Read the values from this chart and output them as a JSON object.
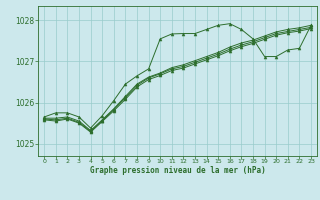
{
  "title": "Graphe pression niveau de la mer (hPa)",
  "bg_color": "#cce8ec",
  "grid_color": "#99cccc",
  "line_color": "#2d6e2d",
  "marker_color": "#2d6e2d",
  "xlim": [
    -0.5,
    23.5
  ],
  "ylim": [
    1024.7,
    1028.35
  ],
  "yticks": [
    1025,
    1026,
    1027,
    1028
  ],
  "xticks": [
    0,
    1,
    2,
    3,
    4,
    5,
    6,
    7,
    8,
    9,
    10,
    11,
    12,
    13,
    14,
    15,
    16,
    17,
    18,
    19,
    20,
    21,
    22,
    23
  ],
  "y_main": [
    1025.65,
    1025.75,
    1025.75,
    1025.65,
    1025.38,
    1025.68,
    1026.05,
    1026.45,
    1026.65,
    1026.82,
    1027.55,
    1027.67,
    1027.68,
    1027.68,
    1027.78,
    1027.88,
    1027.92,
    1027.78,
    1027.55,
    1027.12,
    1027.12,
    1027.28,
    1027.32,
    1027.88
  ],
  "y_lin1": [
    1025.62,
    1025.62,
    1025.65,
    1025.55,
    1025.32,
    1025.58,
    1025.85,
    1026.15,
    1026.45,
    1026.62,
    1026.72,
    1026.85,
    1026.92,
    1027.02,
    1027.12,
    1027.22,
    1027.35,
    1027.45,
    1027.52,
    1027.62,
    1027.72,
    1027.78,
    1027.82,
    1027.88
  ],
  "y_lin2": [
    1025.6,
    1025.58,
    1025.62,
    1025.52,
    1025.3,
    1025.56,
    1025.83,
    1026.12,
    1026.42,
    1026.6,
    1026.7,
    1026.82,
    1026.88,
    1026.98,
    1027.08,
    1027.18,
    1027.3,
    1027.4,
    1027.48,
    1027.58,
    1027.68,
    1027.73,
    1027.78,
    1027.83
  ],
  "y_lin3": [
    1025.58,
    1025.55,
    1025.6,
    1025.5,
    1025.28,
    1025.54,
    1025.8,
    1026.08,
    1026.38,
    1026.56,
    1026.66,
    1026.78,
    1026.84,
    1026.94,
    1027.04,
    1027.14,
    1027.26,
    1027.36,
    1027.44,
    1027.54,
    1027.64,
    1027.7,
    1027.74,
    1027.8
  ]
}
